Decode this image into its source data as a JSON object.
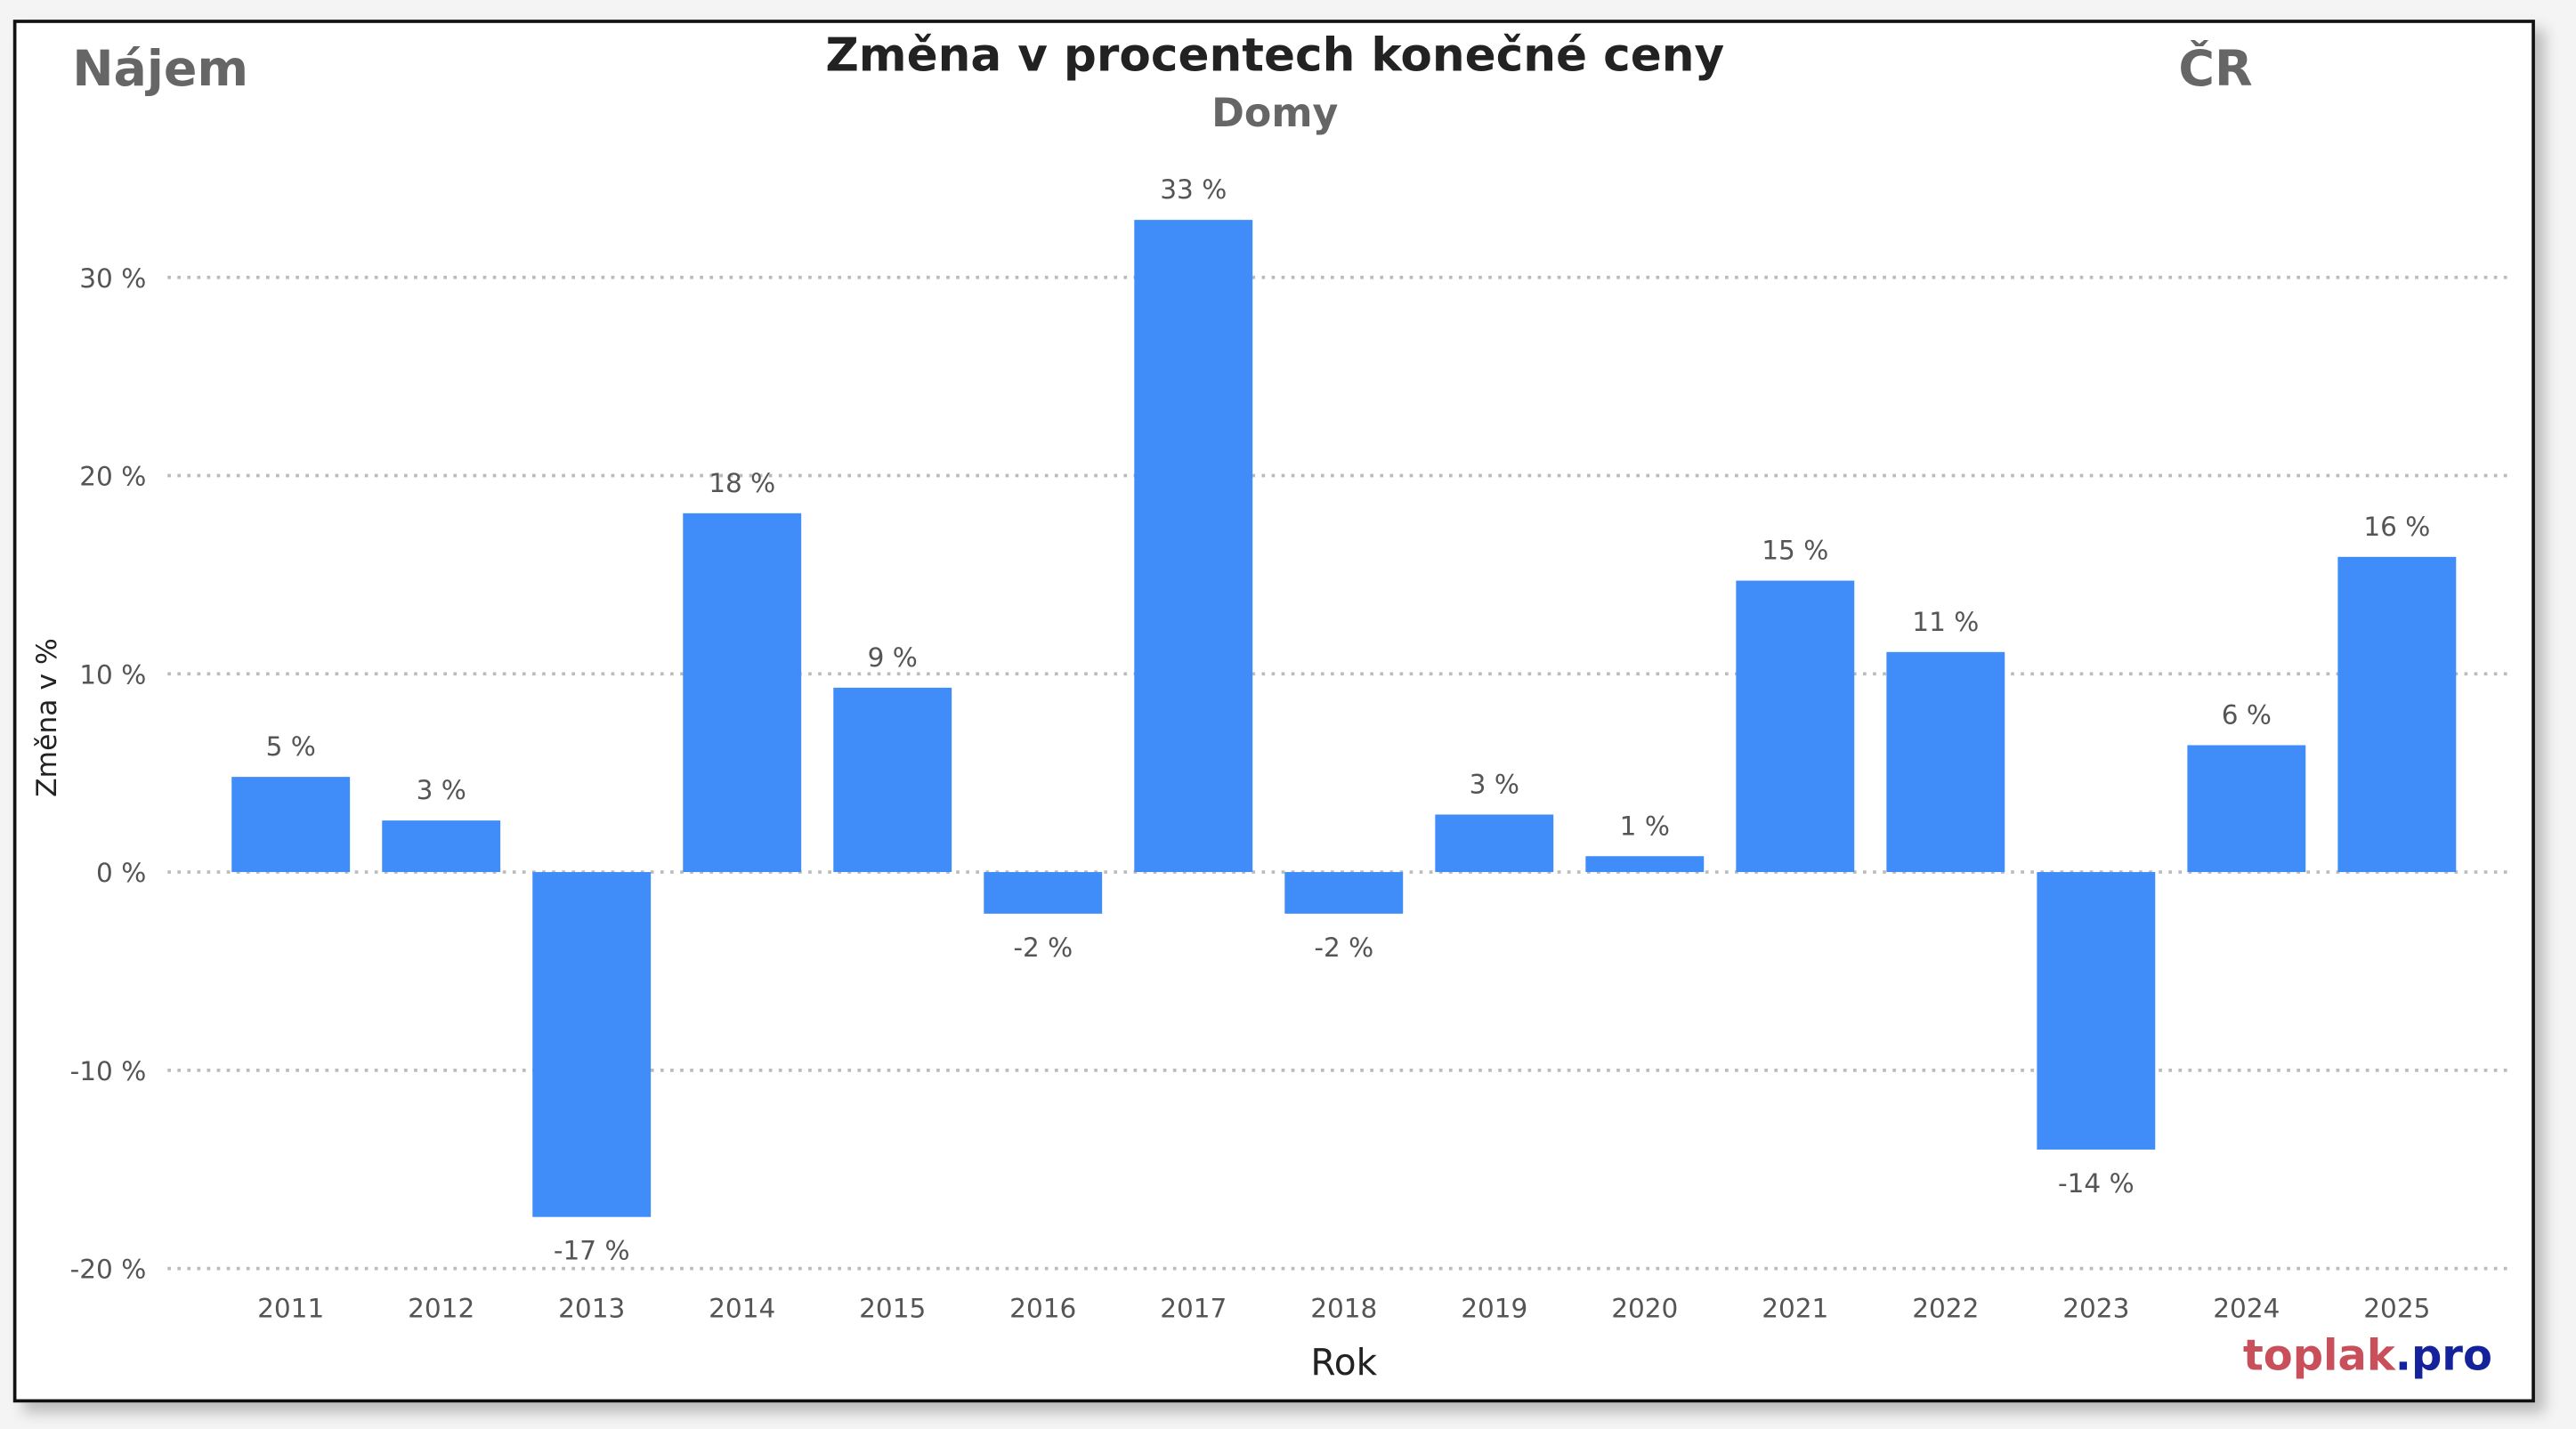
{
  "header": {
    "left_label": "Nájem",
    "right_label": "ČR",
    "logo": {
      "part1": "toplak",
      "part2": ".pro",
      "color1": "#c9505a",
      "color2": "#14239b"
    }
  },
  "chart_data": {
    "type": "bar",
    "title": "Změna v procentech konečné ceny",
    "subtitle": "Domy",
    "xlabel": "Rok",
    "ylabel": "Změna v %",
    "categories": [
      "2011",
      "2012",
      "2013",
      "2014",
      "2015",
      "2016",
      "2017",
      "2018",
      "2019",
      "2020",
      "2021",
      "2022",
      "2023",
      "2024",
      "2025"
    ],
    "values": [
      4.8,
      2.6,
      -17.4,
      18.1,
      9.3,
      -2.1,
      32.9,
      -2.1,
      2.9,
      0.8,
      14.7,
      11.1,
      -14.0,
      6.4,
      15.9
    ],
    "data_labels": [
      "5 %",
      "3 %",
      "-17 %",
      "18 %",
      "9 %",
      "-2 %",
      "33 %",
      "-2 %",
      "3 %",
      "1 %",
      "15 %",
      "11 %",
      "-14 %",
      "6 %",
      "16 %"
    ],
    "yticks": [
      -20,
      -10,
      0,
      10,
      20,
      30
    ],
    "ytick_labels": [
      "-20 %",
      "-10 %",
      "0 %",
      "10 %",
      "20 %",
      "30 %"
    ],
    "ylim": [
      -20,
      33
    ],
    "grid": true,
    "bar_color": "#408cf8"
  }
}
